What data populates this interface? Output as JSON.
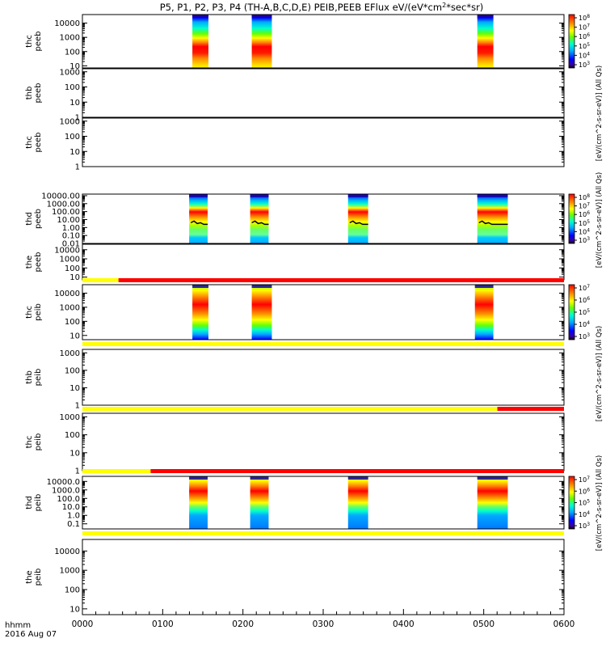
{
  "title": "P5, P1, P2, P3, P4 (TH-A,B,C,D,E) PEIB,PEEB EFlux eV/(eV*cm",
  "title_sup": "2",
  "title_end": "*sec*sr)",
  "footer": {
    "label": "hhmm",
    "date": "2016 Aug 07"
  },
  "colors": {
    "frame": "#000000",
    "flag_yellow": "#ffff00",
    "flag_red": "#ff0000",
    "background": "#ffffff"
  },
  "chart_data": {
    "type": "heatmap",
    "x": {
      "ticks": [
        "0000",
        "0100",
        "0200",
        "0300",
        "0400",
        "0500",
        "0600"
      ],
      "range": [
        0,
        360
      ],
      "unit": "minutes from 0000"
    },
    "panels": [
      {
        "ylabel": [
          "thc",
          "peeb"
        ],
        "ticks": [
          "10",
          "100",
          "1000",
          "10000"
        ],
        "log_range": [
          0.85,
          4.6
        ],
        "blocks": [
          [
            137,
            157
          ],
          [
            211,
            236
          ],
          [
            492,
            512
          ]
        ],
        "palette": "ee"
      },
      {
        "ylabel": [
          "thb",
          "peeb"
        ],
        "ticks": [
          "1",
          "10",
          "100",
          "1000"
        ],
        "log_range": [
          0,
          3.2
        ],
        "blocks": []
      },
      {
        "ylabel": [
          "thc",
          "peeb"
        ],
        "ticks": [
          "1",
          "10",
          "100",
          "1000"
        ],
        "log_range": [
          0,
          3.2
        ],
        "blocks": []
      },
      {
        "ylabel": [
          "thd",
          "peeb"
        ],
        "ticks": [
          "0.01",
          "0.10",
          "1.00",
          "10.00",
          "100.00",
          "1000.00",
          "10000.00"
        ],
        "log_range": [
          -2,
          4.2
        ],
        "blocks": [
          [
            133,
            156
          ],
          [
            209,
            232
          ],
          [
            331,
            356
          ],
          [
            492,
            530
          ]
        ],
        "palette": "ed",
        "trace": true
      },
      {
        "ylabel": [
          "the",
          "peeb"
        ],
        "ticks": [
          "10",
          "100",
          "1000",
          "10000"
        ],
        "log_range": [
          0.7,
          4.6
        ],
        "blocks": []
      },
      {
        "ylabel": [
          "thc",
          "peib"
        ],
        "ticks": [
          "10",
          "100",
          "1000",
          "10000"
        ],
        "log_range": [
          0.7,
          4.6
        ],
        "blocks": [
          [
            137,
            157
          ],
          [
            211,
            236
          ],
          [
            489,
            512
          ]
        ],
        "palette": "ie",
        "flag": [
          {
            "from": 0,
            "to": 45,
            "color": "yellow"
          },
          {
            "from": 45,
            "to": 600,
            "color": "red"
          }
        ]
      },
      {
        "ylabel": [
          "thb",
          "peib"
        ],
        "ticks": [
          "1",
          "10",
          "100",
          "1000"
        ],
        "log_range": [
          0,
          3.2
        ],
        "blocks": [],
        "flag": [
          {
            "from": 0,
            "to": 600,
            "color": "yellow"
          }
        ]
      },
      {
        "ylabel": [
          "thc",
          "peib"
        ],
        "ticks": [
          "1",
          "10",
          "100",
          "1000"
        ],
        "log_range": [
          0,
          3.2
        ],
        "blocks": [],
        "flag": [
          {
            "from": 0,
            "to": 517,
            "color": "yellow"
          },
          {
            "from": 517,
            "to": 600,
            "color": "red"
          }
        ]
      },
      {
        "ylabel": [
          "thd",
          "peib"
        ],
        "ticks": [
          "0.1",
          "1.0",
          "10.0",
          "100.0",
          "1000.0",
          "10000.0"
        ],
        "log_range": [
          -1.6,
          4.6
        ],
        "blocks": [
          [
            133,
            156
          ],
          [
            209,
            232
          ],
          [
            331,
            356
          ],
          [
            492,
            530
          ]
        ],
        "palette": "id",
        "flag": [
          {
            "from": 0,
            "to": 85,
            "color": "yellow"
          },
          {
            "from": 85,
            "to": 600,
            "color": "red"
          }
        ]
      },
      {
        "ylabel": [
          "the",
          "peib"
        ],
        "ticks": [
          "10",
          "100",
          "1000",
          "10000"
        ],
        "log_range": [
          0.7,
          4.6
        ],
        "blocks": [],
        "flag": [
          {
            "from": 0,
            "to": 600,
            "color": "yellow"
          }
        ]
      }
    ],
    "colorbars": [
      {
        "ticks_base": [
          "10",
          "10",
          "10",
          "10",
          "10",
          "10"
        ],
        "ticks_exp": [
          "3",
          "4",
          "5",
          "6",
          "7",
          "8"
        ],
        "label": "[eV/(cm^2-s-sr-eV)] (All Qs)",
        "label_sup": "2"
      },
      {
        "ticks_base": [
          "10",
          "10",
          "10",
          "10",
          "10",
          "10"
        ],
        "ticks_exp": [
          "3",
          "4",
          "5",
          "6",
          "7",
          "8"
        ],
        "label": "[eV/(cm^2-s-sr-eV)] (All Qs)",
        "label_sup": "2"
      },
      {
        "ticks_base": [
          "10",
          "10",
          "10",
          "10",
          "10"
        ],
        "ticks_exp": [
          "3",
          "4",
          "5",
          "6",
          "7"
        ],
        "label": "[eV/(cm^2-s-sr-eV)] (All Qs)",
        "label_sup": "2"
      },
      {
        "ticks_base": [
          "10",
          "10",
          "10",
          "10",
          "10"
        ],
        "ticks_exp": [
          "3",
          "4",
          "5",
          "6",
          "7"
        ],
        "label": "[eV/(cm^2-s-sr-eV)] (All Qs)",
        "label_sup": "2"
      }
    ]
  }
}
